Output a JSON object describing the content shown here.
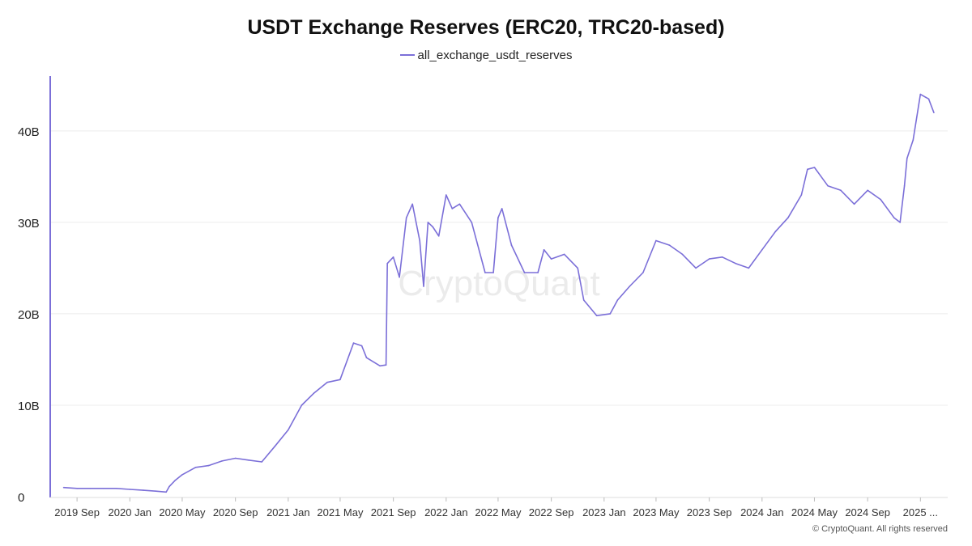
{
  "footer": "© CryptoQuant. All rights reserved",
  "watermark": "CryptoQuant",
  "colors": {
    "line": "#7b6fd8",
    "grid": "#ececec",
    "axis": "#7b6fd8"
  },
  "chart_data": {
    "type": "line",
    "title": "USDT Exchange Reserves (ERC20, TRC20-based)",
    "xlabel": "",
    "ylabel": "",
    "legend_position": "top-center",
    "grid": true,
    "ylim": [
      0,
      46
    ],
    "y_ticks": [
      {
        "value": 0,
        "label": "0"
      },
      {
        "value": 10,
        "label": "10B"
      },
      {
        "value": 20,
        "label": "20B"
      },
      {
        "value": 30,
        "label": "30B"
      },
      {
        "value": 40,
        "label": "40B"
      }
    ],
    "xlim": [
      "2019-07-01",
      "2025-03-05"
    ],
    "x_ticks": [
      {
        "value": "2019-09-01",
        "label": "2019 Sep"
      },
      {
        "value": "2020-01-01",
        "label": "2020 Jan"
      },
      {
        "value": "2020-05-01",
        "label": "2020 May"
      },
      {
        "value": "2020-09-01",
        "label": "2020 Sep"
      },
      {
        "value": "2021-01-01",
        "label": "2021 Jan"
      },
      {
        "value": "2021-05-01",
        "label": "2021 May"
      },
      {
        "value": "2021-09-01",
        "label": "2021 Sep"
      },
      {
        "value": "2022-01-01",
        "label": "2022 Jan"
      },
      {
        "value": "2022-05-01",
        "label": "2022 May"
      },
      {
        "value": "2022-09-01",
        "label": "2022 Sep"
      },
      {
        "value": "2023-01-01",
        "label": "2023 Jan"
      },
      {
        "value": "2023-05-01",
        "label": "2023 May"
      },
      {
        "value": "2023-09-01",
        "label": "2023 Sep"
      },
      {
        "value": "2024-01-01",
        "label": "2024 Jan"
      },
      {
        "value": "2024-05-01",
        "label": "2024 May"
      },
      {
        "value": "2024-09-01",
        "label": "2024 Sep"
      },
      {
        "value": "2025-01-01",
        "label": "2025 ..."
      }
    ],
    "series": [
      {
        "name": "all_exchange_usdt_reserves",
        "unit": "B USDT",
        "points": [
          [
            "2019-08-01",
            1.0
          ],
          [
            "2019-09-01",
            0.9
          ],
          [
            "2019-10-01",
            0.9
          ],
          [
            "2019-11-01",
            0.9
          ],
          [
            "2019-12-01",
            0.9
          ],
          [
            "2020-01-01",
            0.8
          ],
          [
            "2020-02-01",
            0.7
          ],
          [
            "2020-03-01",
            0.6
          ],
          [
            "2020-03-25",
            0.5
          ],
          [
            "2020-04-01",
            1.1
          ],
          [
            "2020-04-15",
            1.8
          ],
          [
            "2020-05-01",
            2.4
          ],
          [
            "2020-06-01",
            3.2
          ],
          [
            "2020-07-01",
            3.4
          ],
          [
            "2020-08-01",
            3.9
          ],
          [
            "2020-09-01",
            4.2
          ],
          [
            "2020-10-01",
            4.0
          ],
          [
            "2020-11-01",
            3.8
          ],
          [
            "2020-12-01",
            5.5
          ],
          [
            "2021-01-01",
            7.3
          ],
          [
            "2021-02-01",
            10.0
          ],
          [
            "2021-03-01",
            11.3
          ],
          [
            "2021-04-01",
            12.5
          ],
          [
            "2021-05-01",
            12.8
          ],
          [
            "2021-06-01",
            16.8
          ],
          [
            "2021-06-20",
            16.5
          ],
          [
            "2021-07-01",
            15.2
          ],
          [
            "2021-08-01",
            14.3
          ],
          [
            "2021-08-15",
            14.4
          ],
          [
            "2021-08-18",
            25.5
          ],
          [
            "2021-09-01",
            26.2
          ],
          [
            "2021-09-15",
            24.0
          ],
          [
            "2021-10-01",
            30.5
          ],
          [
            "2021-10-15",
            32.0
          ],
          [
            "2021-11-01",
            28.0
          ],
          [
            "2021-11-10",
            23.0
          ],
          [
            "2021-11-20",
            30.0
          ],
          [
            "2021-12-01",
            29.5
          ],
          [
            "2021-12-15",
            28.5
          ],
          [
            "2022-01-01",
            33.0
          ],
          [
            "2022-01-15",
            31.5
          ],
          [
            "2022-02-01",
            32.0
          ],
          [
            "2022-03-01",
            30.0
          ],
          [
            "2022-04-01",
            24.5
          ],
          [
            "2022-04-20",
            24.5
          ],
          [
            "2022-05-01",
            30.5
          ],
          [
            "2022-05-10",
            31.5
          ],
          [
            "2022-06-01",
            27.5
          ],
          [
            "2022-07-01",
            24.5
          ],
          [
            "2022-08-01",
            24.5
          ],
          [
            "2022-08-15",
            27.0
          ],
          [
            "2022-09-01",
            26.0
          ],
          [
            "2022-10-01",
            26.5
          ],
          [
            "2022-11-01",
            25.0
          ],
          [
            "2022-11-15",
            21.5
          ],
          [
            "2022-12-15",
            19.8
          ],
          [
            "2023-01-15",
            20.0
          ],
          [
            "2023-02-01",
            21.5
          ],
          [
            "2023-03-01",
            23.0
          ],
          [
            "2023-04-01",
            24.5
          ],
          [
            "2023-05-01",
            28.0
          ],
          [
            "2023-06-01",
            27.5
          ],
          [
            "2023-07-01",
            26.5
          ],
          [
            "2023-08-01",
            25.0
          ],
          [
            "2023-09-01",
            26.0
          ],
          [
            "2023-10-01",
            26.2
          ],
          [
            "2023-11-01",
            25.5
          ],
          [
            "2023-12-01",
            25.0
          ],
          [
            "2024-01-01",
            27.0
          ],
          [
            "2024-02-01",
            29.0
          ],
          [
            "2024-03-01",
            30.5
          ],
          [
            "2024-04-01",
            33.0
          ],
          [
            "2024-04-15",
            35.8
          ],
          [
            "2024-05-01",
            36.0
          ],
          [
            "2024-06-01",
            34.0
          ],
          [
            "2024-07-01",
            33.5
          ],
          [
            "2024-08-01",
            32.0
          ],
          [
            "2024-09-01",
            33.5
          ],
          [
            "2024-10-01",
            32.5
          ],
          [
            "2024-11-01",
            30.5
          ],
          [
            "2024-11-15",
            30.0
          ],
          [
            "2024-11-25",
            34.0
          ],
          [
            "2024-12-01",
            37.0
          ],
          [
            "2024-12-15",
            39.0
          ],
          [
            "2025-01-01",
            44.0
          ],
          [
            "2025-01-20",
            43.5
          ],
          [
            "2025-02-01",
            42.0
          ]
        ]
      }
    ]
  }
}
